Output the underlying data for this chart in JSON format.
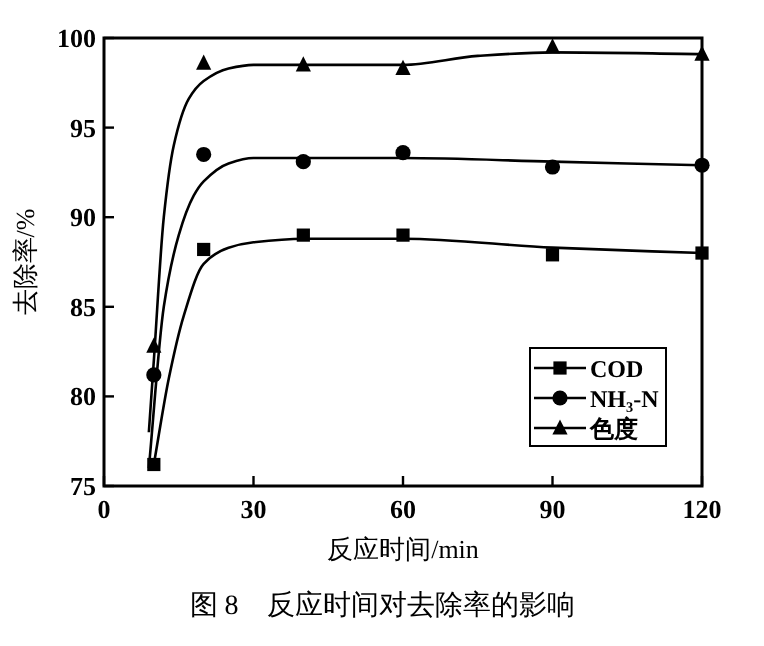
{
  "chart_data": {
    "type": "scatter",
    "title": "图 8　反应时间对去除率的影响",
    "xlabel": "反应时间/min",
    "ylabel": "去除率/%",
    "xlim": [
      0,
      120
    ],
    "xticks": [
      0,
      30,
      60,
      90,
      120
    ],
    "ylim": [
      75,
      100
    ],
    "yticks": [
      75,
      80,
      85,
      90,
      95,
      100
    ],
    "legend": "bottom right",
    "grid": false,
    "series": [
      {
        "name": "COD",
        "color": "#000000",
        "marker": "square",
        "x": [
          10,
          20,
          40,
          60,
          90,
          120
        ],
        "values": [
          76.2,
          88.2,
          89.0,
          89.0,
          87.9,
          88.0
        ]
      },
      {
        "name": "NH₃-N",
        "color": "#000000",
        "marker": "circle",
        "x": [
          10,
          20,
          40,
          60,
          90,
          120
        ],
        "values": [
          81.2,
          93.5,
          93.1,
          93.6,
          92.8,
          92.9
        ]
      },
      {
        "name": "色度",
        "color": "#000000",
        "marker": "triangle",
        "x": [
          10,
          20,
          40,
          60,
          90,
          120
        ],
        "values": [
          82.8,
          98.6,
          98.5,
          98.3,
          99.5,
          99.1
        ]
      },
      {
        "type": "line",
        "color": "#000000",
        "marker": "none",
        "x": [
          10,
          13,
          16,
          20,
          25,
          30,
          40,
          60,
          90,
          120
        ],
        "values": [
          76.2,
          81,
          84.5,
          87.4,
          88.3,
          88.6,
          88.8,
          88.8,
          88.3,
          88.0
        ]
      },
      {
        "type": "line",
        "color": "#000000",
        "marker": "none",
        "x": [
          9,
          12,
          15,
          18,
          20,
          25,
          30,
          60,
          90,
          120
        ],
        "values": [
          76,
          85,
          89,
          91.2,
          92,
          93,
          93.3,
          93.3,
          93.1,
          92.9
        ]
      },
      {
        "type": "line",
        "color": "#000000",
        "marker": "none",
        "x": [
          9,
          10,
          12,
          14,
          17,
          20,
          25,
          30,
          60,
          75,
          90,
          120
        ],
        "values": [
          78,
          82,
          90,
          94,
          96.6,
          97.6,
          98.3,
          98.5,
          98.5,
          99,
          99.2,
          99.1
        ]
      }
    ]
  }
}
